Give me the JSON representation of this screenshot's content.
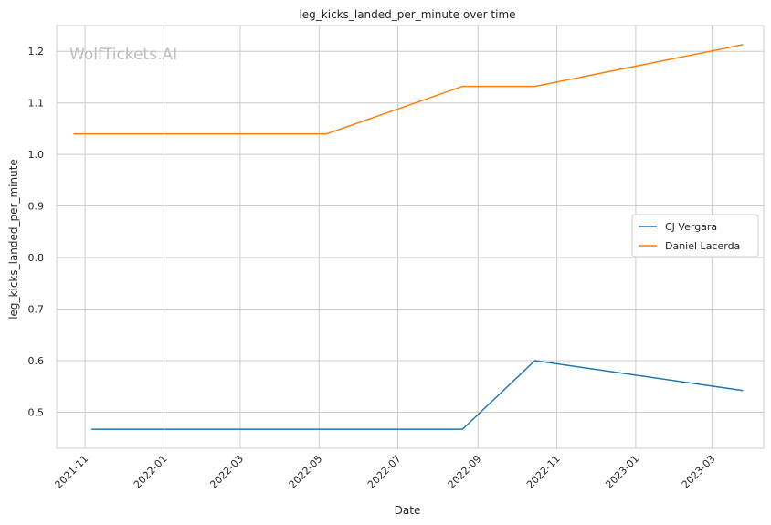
{
  "watermark": "WolfTickets.AI",
  "chart_data": {
    "type": "line",
    "title": "leg_kicks_landed_per_minute over time",
    "xlabel": "Date",
    "ylabel": "leg_kicks_landed_per_minute",
    "x_ticks": [
      "2021-11",
      "2022-01",
      "2022-03",
      "2022-05",
      "2022-07",
      "2022-09",
      "2022-11",
      "2023-01",
      "2023-03"
    ],
    "y_ticks": [
      "0.5",
      "0.6",
      "0.7",
      "0.8",
      "0.9",
      "1.0",
      "1.1",
      "1.2"
    ],
    "xlim": [
      "2021-10-10",
      "2023-04-10"
    ],
    "ylim": [
      0.43,
      1.25
    ],
    "grid": true,
    "legend_position": "center-right",
    "series": [
      {
        "name": "CJ Vergara",
        "color": "#1f77b4",
        "x": [
          "2021-11-06",
          "2022-08-20",
          "2022-10-15",
          "2023-03-25"
        ],
        "y": [
          0.467,
          0.467,
          0.6,
          0.542
        ]
      },
      {
        "name": "Daniel Lacerda",
        "color": "#ff7f0e",
        "x": [
          "2021-10-23",
          "2022-05-07",
          "2022-08-20",
          "2022-10-15",
          "2023-03-25"
        ],
        "y": [
          1.04,
          1.04,
          1.132,
          1.132,
          1.213
        ]
      }
    ]
  }
}
